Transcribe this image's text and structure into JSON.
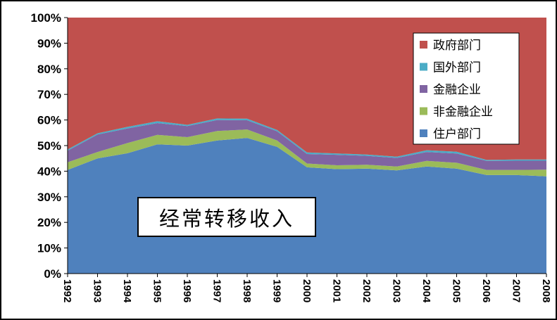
{
  "chart_data": {
    "type": "area",
    "stacked": true,
    "normalized_percent": true,
    "x": [
      "1992",
      "1993",
      "1994",
      "1995",
      "1996",
      "1997",
      "1998",
      "1999",
      "2000",
      "2001",
      "2002",
      "2003",
      "2004",
      "2005",
      "2006",
      "2007",
      "2008"
    ],
    "series": [
      {
        "name": "住户部门",
        "color": "#4F81BD",
        "values": [
          40.5,
          45.0,
          47.0,
          50.5,
          50.0,
          52.0,
          53.0,
          49.5,
          41.5,
          40.8,
          41.0,
          40.3,
          41.8,
          41.0,
          38.5,
          38.5,
          38.0
        ]
      },
      {
        "name": "非金融企业",
        "color": "#9BBB59",
        "values": [
          3.0,
          2.5,
          4.0,
          3.7,
          3.3,
          3.7,
          3.3,
          2.5,
          1.5,
          1.5,
          1.5,
          1.5,
          2.2,
          2.3,
          2.0,
          2.0,
          2.6
        ]
      },
      {
        "name": "金融企业",
        "color": "#8064A2",
        "values": [
          4.5,
          6.8,
          5.7,
          4.6,
          4.3,
          4.3,
          3.6,
          3.6,
          3.7,
          4.1,
          3.5,
          3.4,
          3.5,
          3.6,
          3.5,
          3.6,
          3.5
        ]
      },
      {
        "name": "国外部门",
        "color": "#4BACC6",
        "values": [
          0.5,
          0.5,
          0.6,
          0.7,
          0.5,
          0.6,
          0.6,
          0.5,
          0.6,
          0.5,
          0.5,
          0.5,
          0.7,
          0.7,
          0.4,
          0.5,
          0.5
        ]
      },
      {
        "name": "政府部门",
        "color": "#C0504D",
        "values": [
          51.5,
          45.2,
          42.7,
          40.5,
          41.9,
          39.4,
          39.5,
          43.9,
          52.7,
          53.1,
          53.5,
          54.3,
          51.8,
          52.4,
          55.6,
          55.4,
          55.4
        ]
      }
    ],
    "legend_order": [
      "政府部门",
      "国外部门",
      "金融企业",
      "非金融企业",
      "住户部门"
    ],
    "ylim": [
      0,
      100
    ],
    "yticks": [
      "0%",
      "10%",
      "20%",
      "30%",
      "40%",
      "50%",
      "60%",
      "70%",
      "80%",
      "90%",
      "100%"
    ],
    "legend_position": "top-right",
    "grid": false,
    "annotation": "经常转移收入"
  }
}
